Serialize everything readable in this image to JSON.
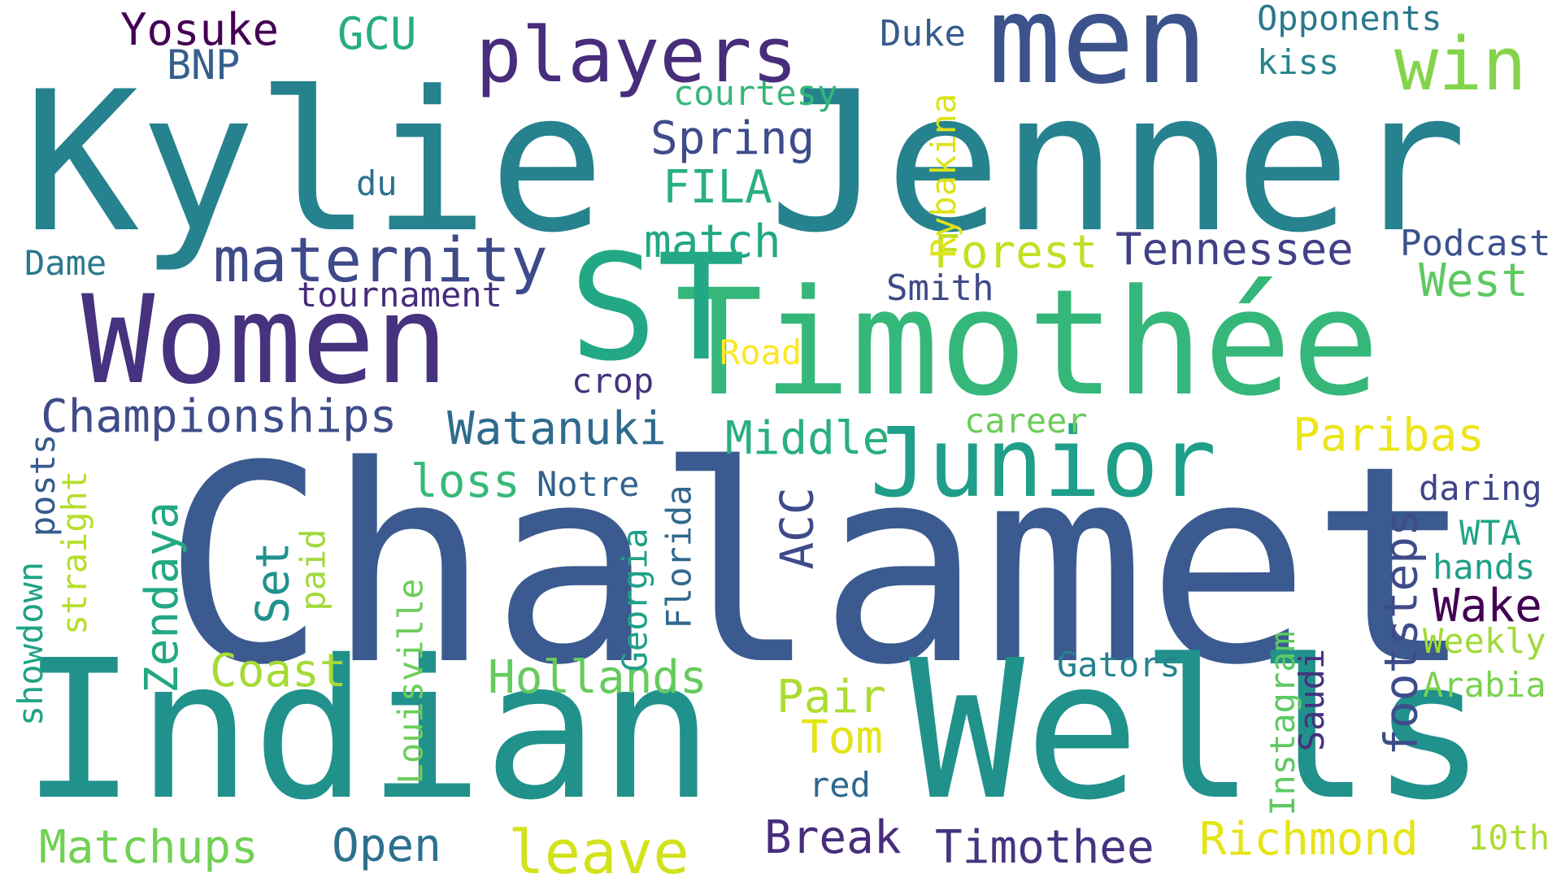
{
  "words": [
    {
      "text": "Chalamet",
      "color": "#3b5a8f"
    },
    {
      "text": "Indian",
      "color": "#21918c"
    },
    {
      "text": "Wells",
      "color": "#21918c"
    },
    {
      "text": "Kylie",
      "color": "#26828e"
    },
    {
      "text": "Jenner",
      "color": "#26828e"
    },
    {
      "text": "Timothée",
      "color": "#35b779"
    },
    {
      "text": "Women",
      "color": "#46327e"
    },
    {
      "text": "men",
      "color": "#3b528b"
    },
    {
      "text": "ST",
      "color": "#22a884"
    },
    {
      "text": "Junior",
      "color": "#1f9e89"
    },
    {
      "text": "players",
      "color": "#472d7b"
    },
    {
      "text": "win",
      "color": "#84d44b"
    },
    {
      "text": "maternity",
      "color": "#3e4a89"
    },
    {
      "text": "Championships",
      "color": "#3e4c8a"
    },
    {
      "text": "Yosuke",
      "color": "#440154"
    },
    {
      "text": "BNP",
      "color": "#355f8d"
    },
    {
      "text": "GCU",
      "color": "#27ad81"
    },
    {
      "text": "Duke",
      "color": "#365c8d"
    },
    {
      "text": "Opponents",
      "color": "#2a788e"
    },
    {
      "text": "kiss",
      "color": "#25858e"
    },
    {
      "text": "courtesy",
      "color": "#35b779"
    },
    {
      "text": "Spring",
      "color": "#3e4c8a"
    },
    {
      "text": "FILA",
      "color": "#2ab07f"
    },
    {
      "text": "du",
      "color": "#2c718e"
    },
    {
      "text": "match",
      "color": "#22a884"
    },
    {
      "text": "Tennessee",
      "color": "#424086"
    },
    {
      "text": "Podcast",
      "color": "#3b528b"
    },
    {
      "text": "Forest",
      "color": "#c2df23"
    },
    {
      "text": "West",
      "color": "#5ec962"
    },
    {
      "text": "Dame",
      "color": "#2a788e"
    },
    {
      "text": "tournament",
      "color": "#472c7a"
    },
    {
      "text": "Smith",
      "color": "#3e4a89"
    },
    {
      "text": "Road",
      "color": "#fde725"
    },
    {
      "text": "crop",
      "color": "#46327e"
    },
    {
      "text": "Watanuki",
      "color": "#2f6b8e"
    },
    {
      "text": "career",
      "color": "#6ccd5a"
    },
    {
      "text": "Middle",
      "color": "#29af7f"
    },
    {
      "text": "Paribas",
      "color": "#ece51b"
    },
    {
      "text": "loss",
      "color": "#37b878"
    },
    {
      "text": "Notre",
      "color": "#33638d"
    },
    {
      "text": "daring",
      "color": "#404588"
    },
    {
      "text": "WTA",
      "color": "#21a685"
    },
    {
      "text": "hands",
      "color": "#1fa088"
    },
    {
      "text": "Wake",
      "color": "#440154"
    },
    {
      "text": "Weekly",
      "color": "#a0da39"
    },
    {
      "text": "Arabia",
      "color": "#7ad151"
    },
    {
      "text": "Coast",
      "color": "#a5db36"
    },
    {
      "text": "Hollands",
      "color": "#65cb5e"
    },
    {
      "text": "Pair",
      "color": "#addc30"
    },
    {
      "text": "Tom",
      "color": "#e2e418"
    },
    {
      "text": "Gators",
      "color": "#26828e"
    },
    {
      "text": "red",
      "color": "#31688e"
    },
    {
      "text": "Matchups",
      "color": "#73d056"
    },
    {
      "text": "Open",
      "color": "#2c718e"
    },
    {
      "text": "leave",
      "color": "#d2e21b"
    },
    {
      "text": "Break",
      "color": "#472d7b"
    },
    {
      "text": "Timothee",
      "color": "#46337f"
    },
    {
      "text": "Richmond",
      "color": "#e5e419"
    },
    {
      "text": "10th",
      "color": "#addc30"
    },
    {
      "text": "Rybakina",
      "color": "#dde318"
    },
    {
      "text": "ACC",
      "color": "#3e4a89"
    },
    {
      "text": "footsteps",
      "color": "#3e4c8a"
    },
    {
      "text": "Instagram",
      "color": "#5ec962"
    },
    {
      "text": "Saudi",
      "color": "#46327e"
    },
    {
      "text": "Florida",
      "color": "#31688e"
    },
    {
      "text": "Georgia",
      "color": "#1fa188"
    },
    {
      "text": "Louisville",
      "color": "#6ccd5a"
    },
    {
      "text": "paid",
      "color": "#a0da39"
    },
    {
      "text": "Set",
      "color": "#21918c"
    },
    {
      "text": "Zendaya",
      "color": "#22a884"
    },
    {
      "text": "straight",
      "color": "#b5de2b"
    },
    {
      "text": "showdown",
      "color": "#20a386"
    },
    {
      "text": "posts",
      "color": "#365c8d"
    }
  ]
}
